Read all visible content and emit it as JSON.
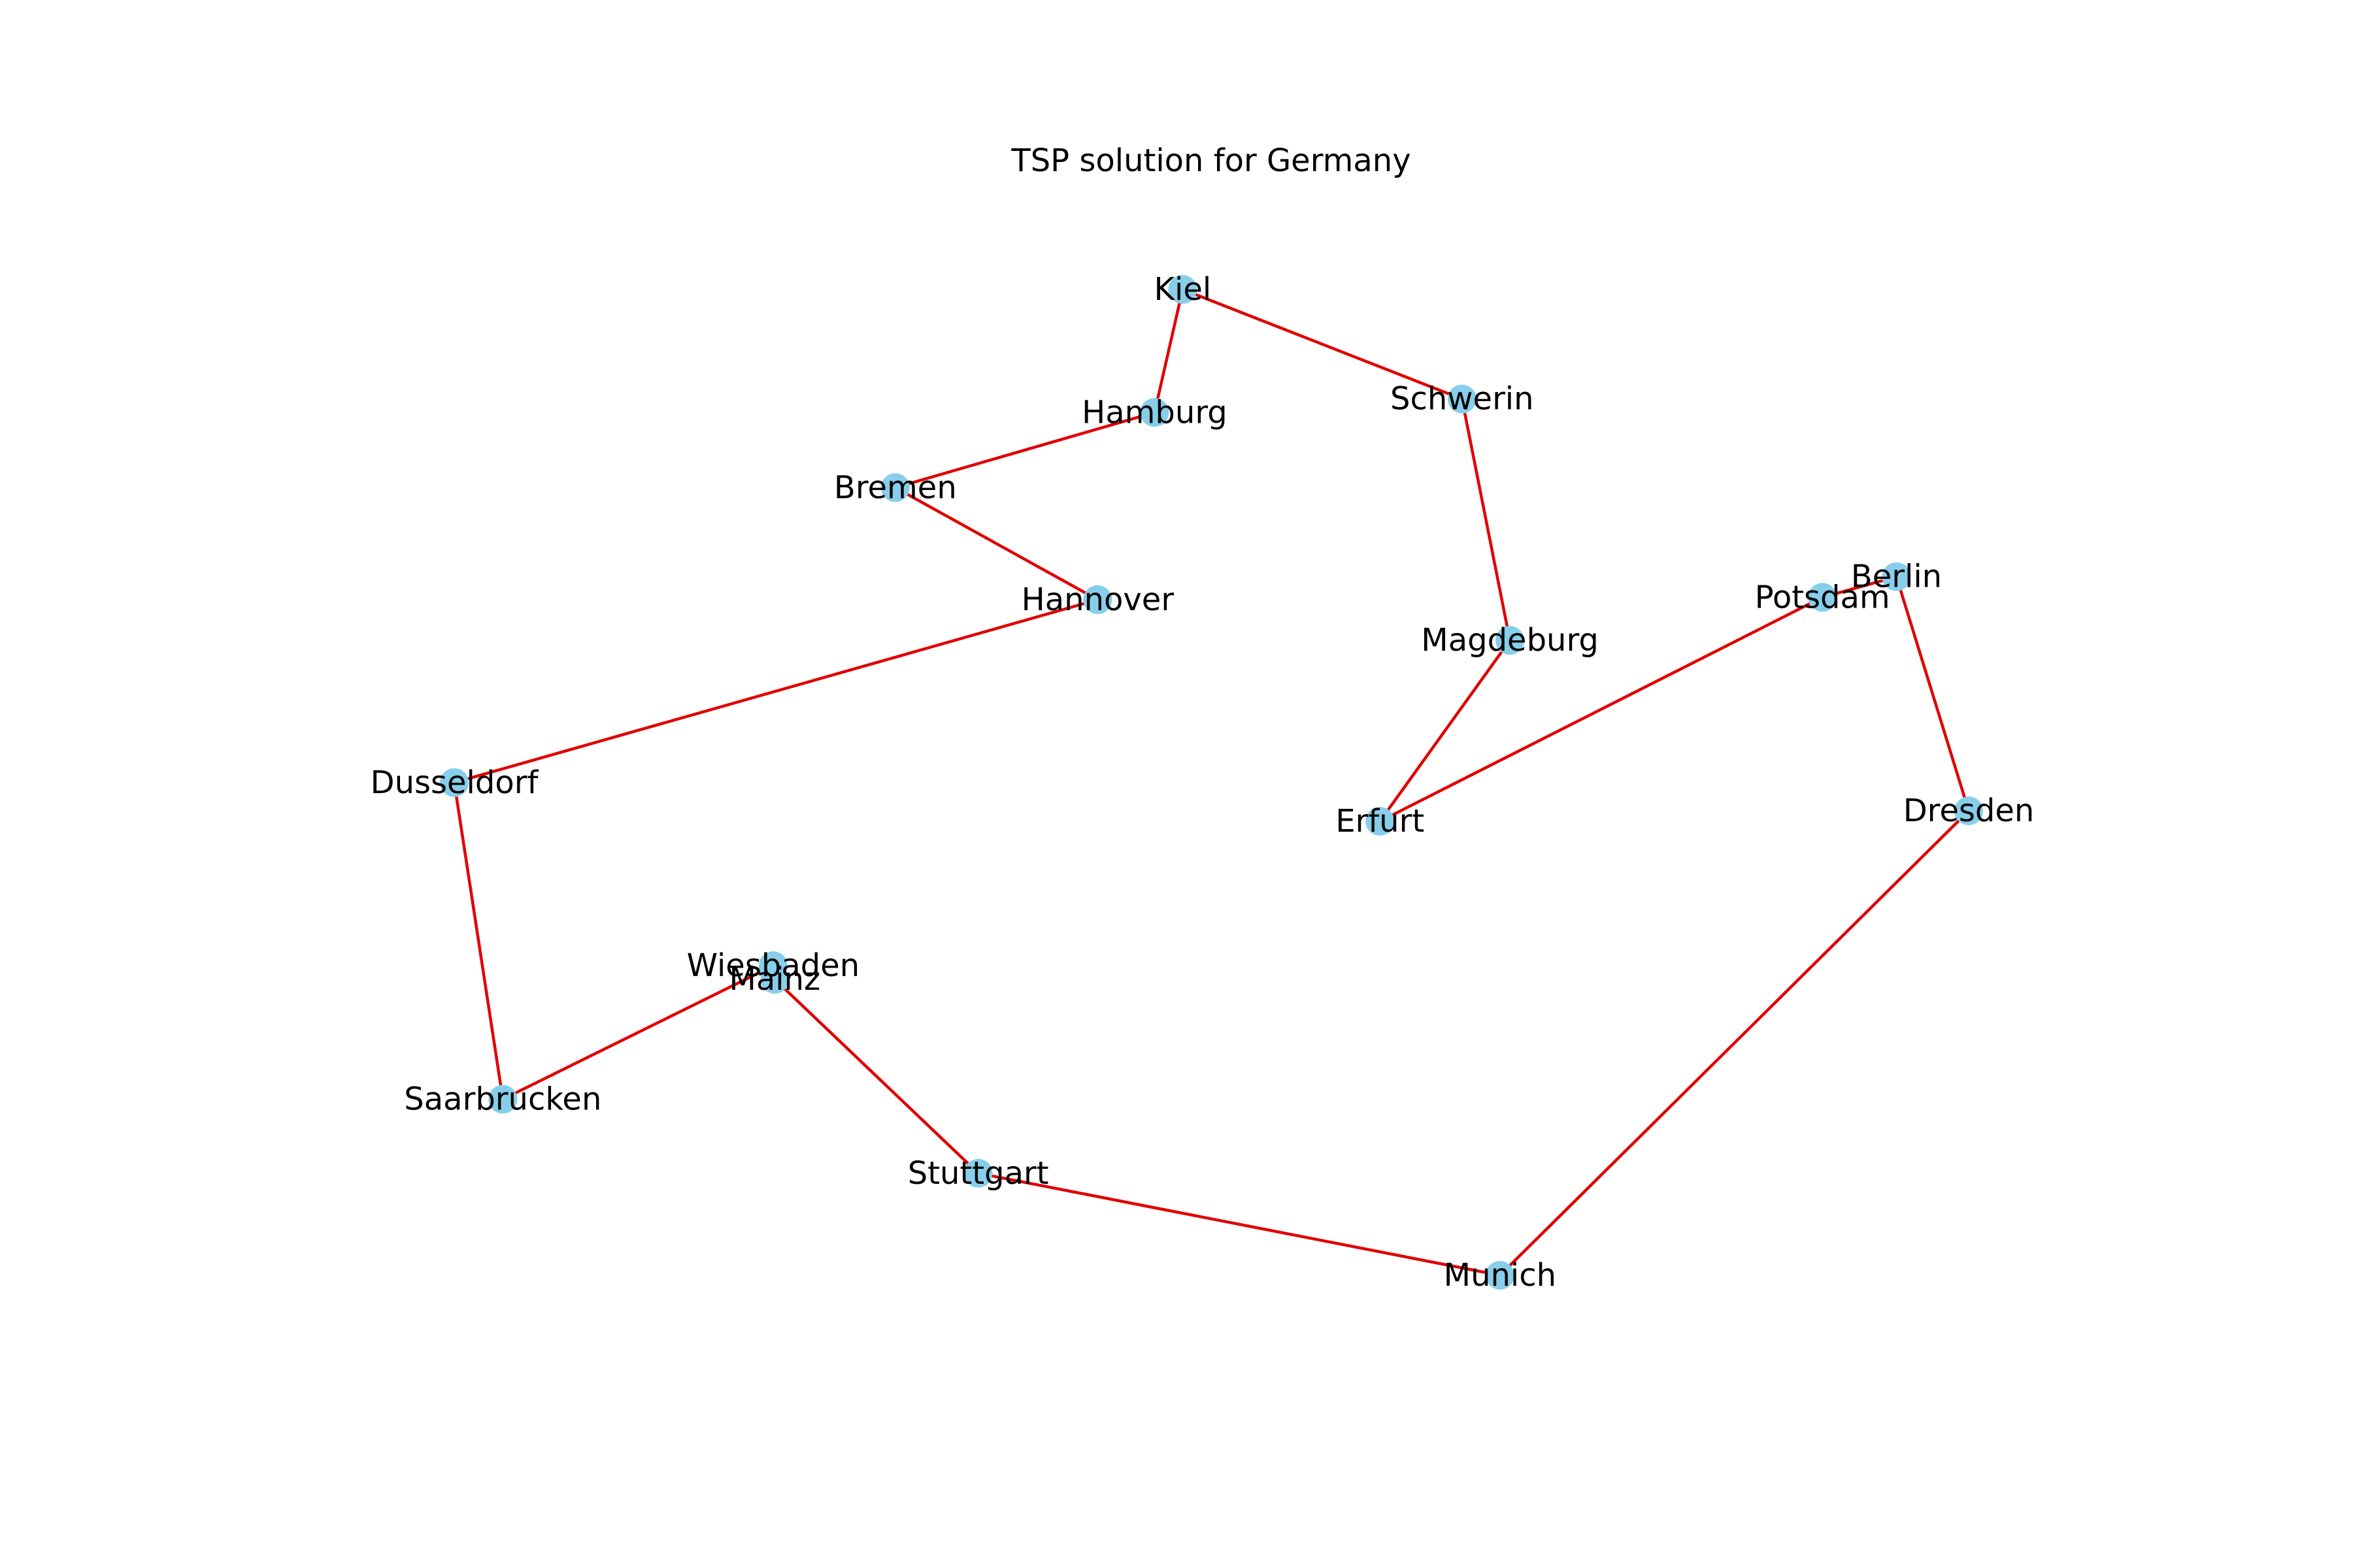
{
  "title": "TSP solution for Germany",
  "colors": {
    "node": "#87ceeb",
    "edge": "#e00000",
    "label": "#000000",
    "background": "#ffffff"
  },
  "chart_data": {
    "type": "network",
    "title": "TSP solution for Germany",
    "nodes": [
      {
        "name": "Kiel",
        "x": 10.1228,
        "y": 54.3233
      },
      {
        "name": "Hamburg",
        "x": 9.9937,
        "y": 53.5511
      },
      {
        "name": "Bremen",
        "x": 8.8017,
        "y": 53.0793
      },
      {
        "name": "Hannover",
        "x": 9.732,
        "y": 52.3759
      },
      {
        "name": "Dusseldorf",
        "x": 6.7735,
        "y": 51.2277
      },
      {
        "name": "Saarbrucken",
        "x": 6.9969,
        "y": 49.2402
      },
      {
        "name": "Wiesbaden",
        "x": 8.2398,
        "y": 50.0782
      },
      {
        "name": "Mainz",
        "x": 8.2473,
        "y": 49.9929
      },
      {
        "name": "Stuttgart",
        "x": 9.1829,
        "y": 48.7758
      },
      {
        "name": "Munich",
        "x": 11.582,
        "y": 48.1351
      },
      {
        "name": "Dresden",
        "x": 13.7373,
        "y": 51.0504
      },
      {
        "name": "Berlin",
        "x": 13.405,
        "y": 52.52
      },
      {
        "name": "Potsdam",
        "x": 13.0645,
        "y": 52.3906
      },
      {
        "name": "Erfurt",
        "x": 11.0299,
        "y": 50.9848
      },
      {
        "name": "Magdeburg",
        "x": 11.6276,
        "y": 52.1205
      },
      {
        "name": "Schwerin",
        "x": 11.4074,
        "y": 53.6355
      }
    ],
    "route": [
      "Kiel",
      "Hamburg",
      "Bremen",
      "Hannover",
      "Dusseldorf",
      "Saarbrucken",
      "Wiesbaden",
      "Mainz",
      "Stuttgart",
      "Munich",
      "Dresden",
      "Berlin",
      "Potsdam",
      "Erfurt",
      "Magdeburg",
      "Schwerin",
      "Kiel"
    ],
    "xlim": [
      6.7735,
      13.7373
    ],
    "ylim": [
      48.1351,
      54.3233
    ]
  }
}
